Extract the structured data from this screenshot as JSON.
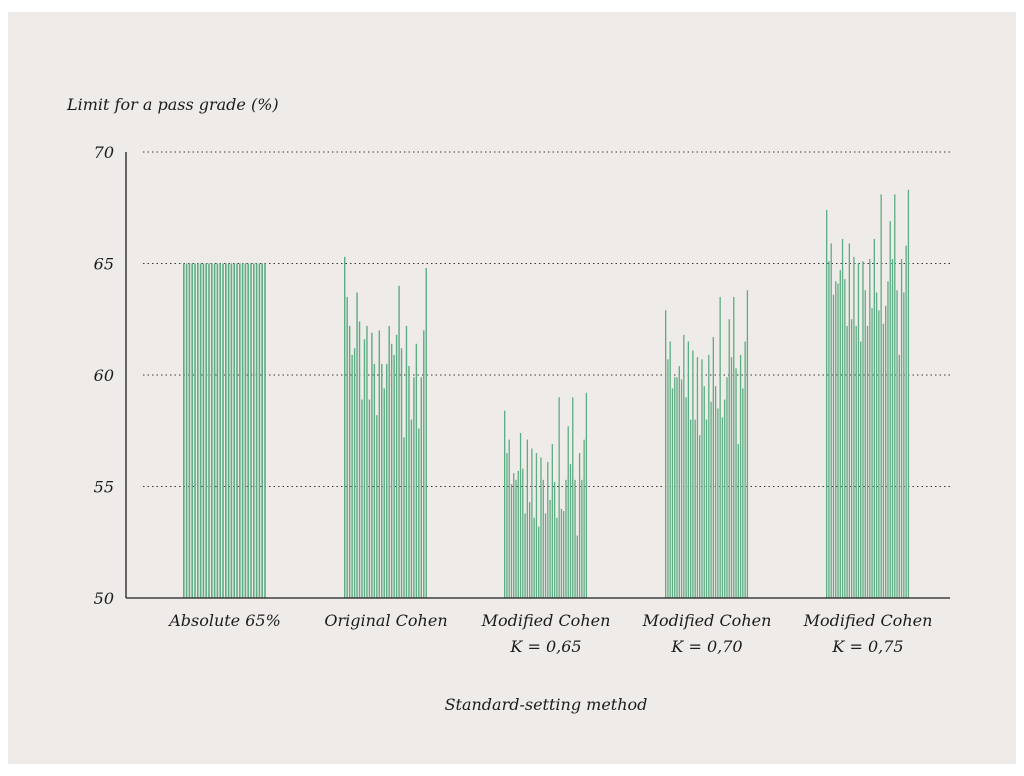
{
  "chart_data": {
    "type": "bar",
    "ylabel": "Limit for a pass grade (%)",
    "xlabel": "Standard-setting method",
    "ylim": [
      50,
      70
    ],
    "yticks": [
      70,
      65,
      60,
      55,
      50
    ],
    "grid": "dotted horizontal at ticks",
    "bar_color": "#5fad84",
    "groups": [
      {
        "label_lines": [
          "Absolute 65%"
        ],
        "values": [
          65,
          65,
          65,
          65,
          65,
          65,
          65,
          65,
          65,
          65,
          65,
          65,
          65,
          65,
          65,
          65,
          65,
          65,
          65,
          65,
          65,
          65,
          65,
          65,
          65,
          65,
          65,
          65,
          65,
          65
        ]
      },
      {
        "label_lines": [
          "Original Cohen"
        ],
        "values": [
          65.3,
          63.5,
          62.2,
          60.9,
          61.2,
          63.7,
          62.4,
          58.9,
          61.6,
          62.2,
          58.9,
          61.9,
          60.5,
          58.2,
          62.0,
          60.5,
          59.4,
          60.5,
          62.2,
          61.4,
          60.9,
          61.8,
          64.0,
          61.2,
          57.2,
          62.2,
          60.4,
          58.0,
          59.9,
          61.4,
          57.6,
          59.9,
          62.0,
          64.8
        ]
      },
      {
        "label_lines": [
          "Modified Cohen",
          "K = 0,65"
        ],
        "values": [
          58.4,
          56.5,
          57.1,
          55.1,
          55.6,
          55.3,
          55.7,
          57.4,
          55.8,
          53.8,
          57.1,
          54.3,
          56.7,
          53.6,
          56.5,
          53.2,
          56.3,
          55.3,
          53.8,
          56.1,
          54.4,
          56.9,
          55.2,
          53.6,
          59.0,
          54.0,
          53.9,
          55.3,
          57.7,
          56.0,
          59.0,
          55.3,
          52.8,
          56.5,
          55.3,
          57.1,
          59.2
        ]
      },
      {
        "label_lines": [
          "Modified Cohen",
          "K = 0,70"
        ],
        "values": [
          62.9,
          60.7,
          61.5,
          59.4,
          59.9,
          59.9,
          60.4,
          59.8,
          61.8,
          59.0,
          61.5,
          58.0,
          61.1,
          58.0,
          60.8,
          57.3,
          60.7,
          59.5,
          58.0,
          60.9,
          58.8,
          61.7,
          59.5,
          58.5,
          63.5,
          58.1,
          58.9,
          59.9,
          62.5,
          60.8,
          63.5,
          60.3,
          56.9,
          60.9,
          59.4,
          61.5,
          63.8
        ]
      },
      {
        "label_lines": [
          "Modified Cohen",
          "K = 0,75"
        ],
        "values": [
          67.4,
          65.1,
          65.9,
          63.6,
          64.2,
          64.1,
          64.7,
          66.1,
          64.3,
          62.2,
          65.9,
          62.5,
          65.3,
          62.2,
          65.0,
          61.5,
          65.1,
          63.8,
          62.2,
          65.2,
          63.0,
          66.1,
          63.7,
          62.9,
          68.1,
          62.3,
          63.1,
          64.2,
          66.9,
          65.2,
          68.1,
          63.8,
          60.9,
          65.2,
          63.7,
          65.8,
          68.3
        ]
      }
    ]
  }
}
